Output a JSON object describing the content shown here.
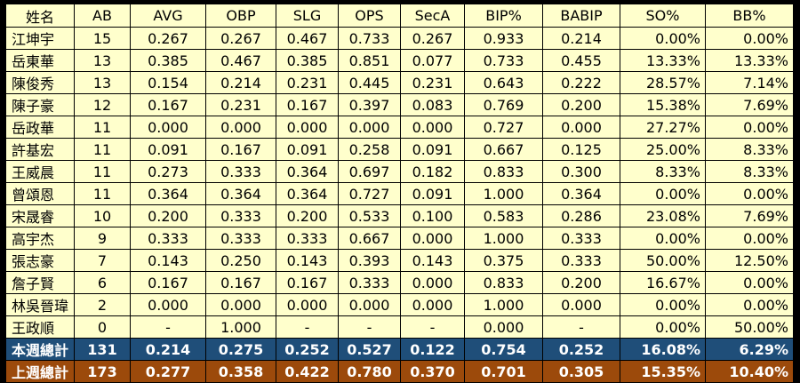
{
  "headers": [
    "姓名",
    "AB",
    "AVG",
    "OBP",
    "SLG",
    "OPS",
    "SecA",
    "BIP%",
    "BABIP",
    "SO%",
    "BB%"
  ],
  "players": [
    [
      "江坤宇",
      "15",
      "0.267",
      "0.267",
      "0.467",
      "0.733",
      "0.267",
      "0.933",
      "0.214",
      "0.00%",
      "0.00%"
    ],
    [
      "岳東華",
      "13",
      "0.385",
      "0.467",
      "0.385",
      "0.851",
      "0.077",
      "0.733",
      "0.455",
      "13.33%",
      "13.33%"
    ],
    [
      "陳俊秀",
      "13",
      "0.154",
      "0.214",
      "0.231",
      "0.445",
      "0.231",
      "0.643",
      "0.222",
      "28.57%",
      "7.14%"
    ],
    [
      "陳子豪",
      "12",
      "0.167",
      "0.231",
      "0.167",
      "0.397",
      "0.083",
      "0.769",
      "0.200",
      "15.38%",
      "7.69%"
    ],
    [
      "岳政華",
      "11",
      "0.000",
      "0.000",
      "0.000",
      "0.000",
      "0.000",
      "0.727",
      "0.000",
      "27.27%",
      "0.00%"
    ],
    [
      "許基宏",
      "11",
      "0.091",
      "0.167",
      "0.091",
      "0.258",
      "0.091",
      "0.667",
      "0.125",
      "25.00%",
      "8.33%"
    ],
    [
      "王威晨",
      "11",
      "0.273",
      "0.333",
      "0.364",
      "0.697",
      "0.182",
      "0.833",
      "0.300",
      "8.33%",
      "8.33%"
    ],
    [
      "曾頌恩",
      "11",
      "0.364",
      "0.364",
      "0.364",
      "0.727",
      "0.091",
      "1.000",
      "0.364",
      "0.00%",
      "0.00%"
    ],
    [
      "宋晟睿",
      "10",
      "0.200",
      "0.333",
      "0.200",
      "0.533",
      "0.100",
      "0.583",
      "0.286",
      "23.08%",
      "7.69%"
    ],
    [
      "高宇杰",
      "9",
      "0.333",
      "0.333",
      "0.333",
      "0.667",
      "0.000",
      "1.000",
      "0.333",
      "0.00%",
      "0.00%"
    ],
    [
      "張志豪",
      "7",
      "0.143",
      "0.250",
      "0.143",
      "0.393",
      "0.143",
      "0.375",
      "0.333",
      "50.00%",
      "12.50%"
    ],
    [
      "詹子賢",
      "6",
      "0.167",
      "0.167",
      "0.167",
      "0.333",
      "0.000",
      "0.833",
      "0.200",
      "16.67%",
      "0.00%"
    ],
    [
      "林吳晉瑋",
      "2",
      "0.000",
      "0.000",
      "0.000",
      "0.000",
      "0.000",
      "1.000",
      "0.000",
      "0.00%",
      "0.00%"
    ],
    [
      "王政順",
      "0",
      "-",
      "1.000",
      "-",
      "-",
      "-",
      "0.000",
      "-",
      "0.00%",
      "50.00%"
    ]
  ],
  "totals": {
    "this_week": [
      "本週總計",
      "131",
      "0.214",
      "0.275",
      "0.252",
      "0.527",
      "0.122",
      "0.754",
      "0.252",
      "16.08%",
      "6.29%"
    ],
    "last_week": [
      "上週總計",
      "173",
      "0.277",
      "0.358",
      "0.422",
      "0.780",
      "0.370",
      "0.701",
      "0.305",
      "15.35%",
      "10.40%"
    ]
  },
  "colors": {
    "row_background": "#ffffcc",
    "this_week_background": "#1f4e79",
    "last_week_background": "#9c4a0b",
    "grid_lines": "#000000"
  }
}
